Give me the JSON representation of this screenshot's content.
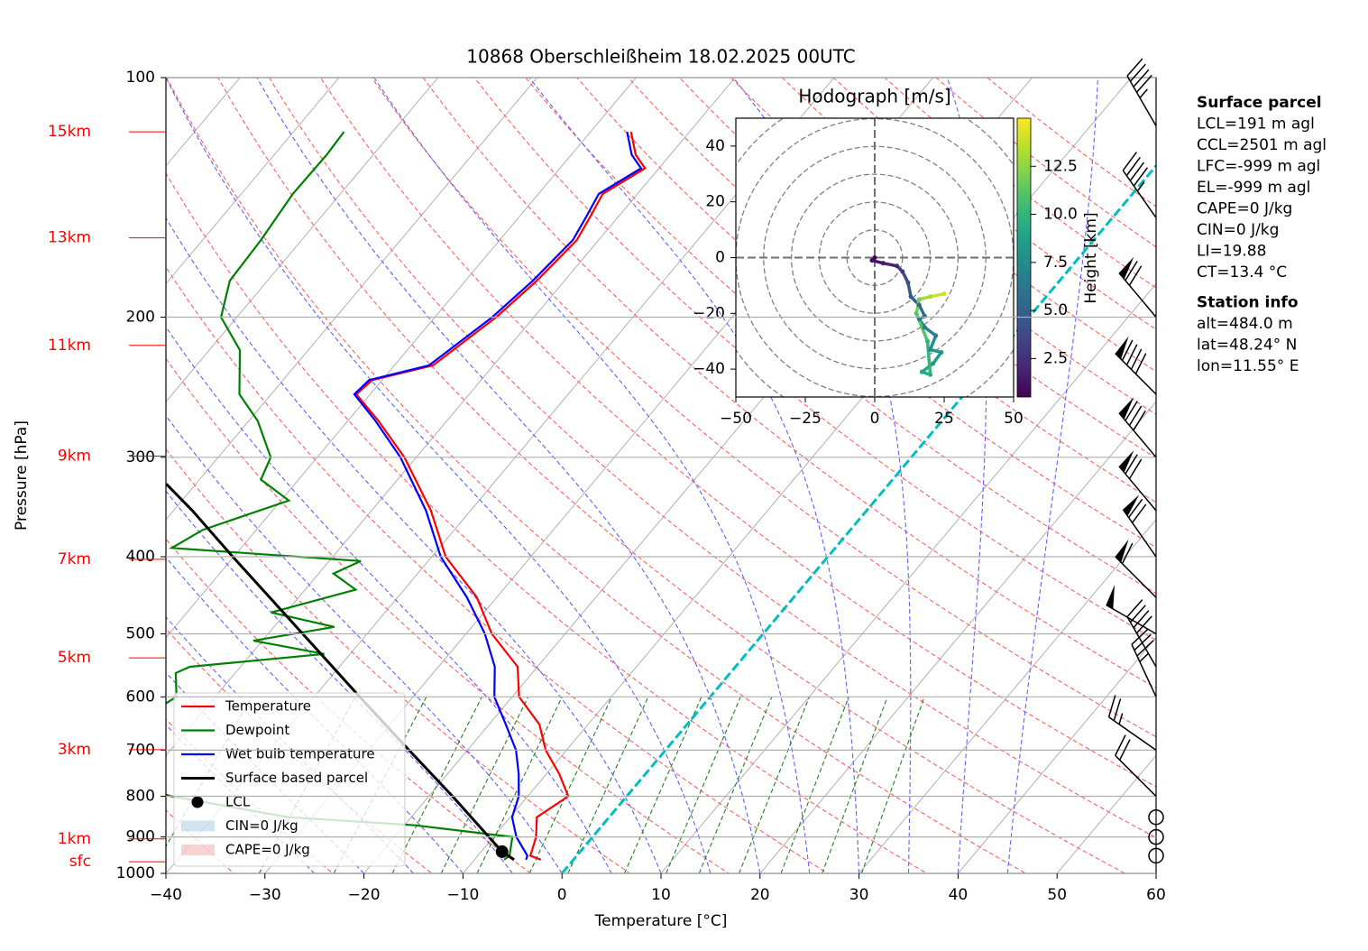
{
  "chart_data": [
    {
      "type": "skewt",
      "title": "10868 Oberschleißheim 18.02.2025 00UTC",
      "xlabel": "Temperature [°C]",
      "ylabel": "Pressure [hPa]",
      "xlim": [
        -40,
        60
      ],
      "xticks": [
        {
          "value": -40,
          "label": "−40"
        },
        {
          "value": -30,
          "label": "−30"
        },
        {
          "value": -20,
          "label": "−20"
        },
        {
          "value": -10,
          "label": "−10"
        },
        0,
        10,
        20,
        30,
        40,
        50,
        60
      ],
      "ylim": [
        1000,
        100
      ],
      "yscale": "log",
      "yticks": [
        1000,
        900,
        800,
        700,
        600,
        500,
        400,
        300,
        200,
        100
      ],
      "grid": true,
      "series": [
        {
          "name": "Temperature",
          "color": "#ff0000",
          "pressure": [
            961,
            950,
            900,
            850,
            800,
            750,
            700,
            650,
            600,
            550,
            500,
            450,
            400,
            350,
            300,
            270,
            250,
            240,
            230,
            200,
            180,
            160,
            150,
            140,
            130,
            125,
            117
          ],
          "values": [
            -3.3,
            -4.7,
            -5.7,
            -7.3,
            -5.9,
            -8.7,
            -12.1,
            -14.9,
            -19.3,
            -22.0,
            -27.4,
            -32.0,
            -38.6,
            -44.0,
            -51.2,
            -56.9,
            -61.4,
            -61.0,
            -56.1,
            -53.8,
            -52.8,
            -52.2,
            -52.8,
            -53.5,
            -51.4,
            -53.5,
            -55.9
          ]
        },
        {
          "name": "Dewpoint",
          "color": "#008000",
          "pressure": [
            961,
            950,
            900,
            870,
            850,
            800,
            750,
            700,
            600,
            560,
            550,
            530,
            510,
            490,
            470,
            440,
            420,
            405,
            390,
            370,
            340,
            320,
            300,
            270,
            250,
            220,
            200,
            180,
            160,
            140,
            125,
            117
          ],
          "values": [
            -7.0,
            -6.8,
            -8.1,
            -18.9,
            -32.4,
            -46.0,
            -55.0,
            -58.0,
            -53.9,
            -56.0,
            -55.1,
            -42.6,
            -50.9,
            -43.9,
            -51.5,
            -44.9,
            -48.5,
            -46.8,
            -67.0,
            -65.4,
            -59.2,
            -63.8,
            -64.7,
            -69.1,
            -73.2,
            -76.9,
            -81.6,
            -83.8,
            -84.1,
            -84.8,
            -84.7,
            -84.9
          ]
        },
        {
          "name": "Wet bulb temperature",
          "color": "#0000ff",
          "pressure": [
            961,
            950,
            900,
            850,
            800,
            750,
            700,
            650,
            600,
            550,
            500,
            450,
            400,
            350,
            300,
            270,
            250,
            240,
            230,
            200,
            180,
            160,
            150,
            140,
            130,
            125,
            117
          ],
          "values": [
            -4.8,
            -5.0,
            -7.7,
            -9.8,
            -10.9,
            -12.8,
            -15.1,
            -18.3,
            -21.8,
            -24.3,
            -28.1,
            -33.0,
            -39.1,
            -44.5,
            -51.6,
            -57.2,
            -61.6,
            -61.3,
            -56.5,
            -54.2,
            -53.2,
            -52.6,
            -53.2,
            -53.9,
            -51.8,
            -53.9,
            -56.3
          ]
        },
        {
          "name": "Surface based parcel",
          "color": "#000000",
          "pressure": [
            961,
            939,
            800,
            700,
            600,
            500,
            400,
            350,
            324
          ],
          "values": [
            -6.0,
            -7.9,
            -17.6,
            -25.9,
            -35.4,
            -46.5,
            -60.1,
            -68.1,
            -73.0
          ]
        }
      ],
      "lcl": {
        "name": "LCL",
        "pressure": 939,
        "temperature": -7.9,
        "color": "#000000"
      },
      "areas": [
        {
          "name": "CIN=0 J/kg",
          "color": "#1f77b4"
        },
        {
          "name": "CAPE=0 J/kg",
          "color": "#d62728"
        }
      ],
      "height_labels": [
        {
          "label": "15km",
          "pressure": 117
        },
        {
          "label": "13km",
          "pressure": 159
        },
        {
          "label": "11km",
          "pressure": 217
        },
        {
          "label": "9km",
          "pressure": 299
        },
        {
          "label": "7km",
          "pressure": 403
        },
        {
          "label": "5km",
          "pressure": 536
        },
        {
          "label": "3km",
          "pressure": 699
        },
        {
          "label": "1km",
          "pressure": 905
        },
        {
          "label": "sfc",
          "pressure": 967
        }
      ],
      "wind_barbs": {
        "pressure": [
          115,
          150,
          200,
          250,
          300,
          350,
          400,
          450,
          500,
          550,
          600,
          700,
          800,
          850,
          900,
          950
        ],
        "speed": [
          45,
          45,
          70,
          90,
          80,
          70,
          70,
          60,
          50,
          40,
          35,
          25,
          20,
          0,
          0,
          0
        ],
        "direction": [
          330,
          325,
          320,
          315,
          320,
          320,
          325,
          315,
          300,
          330,
          335,
          305,
          315,
          0,
          0,
          0
        ]
      },
      "text_boxes": [
        {
          "title": "Surface parcel",
          "lines": [
            "LCL=191 m agl",
            "CCL=2501 m agl",
            "LFC=-999 m agl",
            "EL=-999 m agl",
            "CAPE=0 J/kg",
            "CIN=0 J/kg",
            "LI=19.88",
            "CT=13.4 °C"
          ]
        },
        {
          "title": "Station info",
          "lines": [
            "alt=484.0 m",
            "lat=48.24° N",
            "lon=11.55° E"
          ]
        }
      ]
    },
    {
      "type": "hodograph",
      "title": "Hodograph [m/s]",
      "xlim": [
        -50,
        50
      ],
      "xticks": [
        {
          "value": -50,
          "label": "−50"
        },
        {
          "value": -25,
          "label": "−25"
        },
        0,
        25,
        50
      ],
      "ylim": [
        -50,
        50
      ],
      "yticks": [
        {
          "value": -40,
          "label": "−40"
        },
        {
          "value": -20,
          "label": "−20"
        },
        0,
        20,
        40
      ],
      "u": [
        0,
        -1,
        3,
        8,
        10,
        12,
        13,
        16,
        18,
        16,
        18,
        22,
        20,
        24,
        21,
        17,
        20,
        19,
        15,
        16,
        20,
        25
      ],
      "v": [
        0,
        -1,
        -2,
        -3,
        -5,
        -9,
        -14,
        -17,
        -21,
        -22,
        -25,
        -28,
        -33,
        -34,
        -38,
        -41,
        -42,
        -30,
        -20,
        -15,
        -14,
        -13
      ],
      "height": [
        0.5,
        1,
        1.5,
        2,
        3,
        4,
        4.5,
        5,
        5.5,
        6,
        6.5,
        7,
        7.5,
        8,
        8.5,
        9,
        9.5,
        10,
        11,
        12,
        13,
        14
      ],
      "colorbar": {
        "label": "Height [km]",
        "lim": [
          0.5,
          15
        ],
        "ticks": [
          2.5,
          {
            "value": 5,
            "label": "5.0"
          },
          7.5,
          {
            "value": 10,
            "label": "10.0"
          },
          12.5
        ]
      }
    }
  ]
}
